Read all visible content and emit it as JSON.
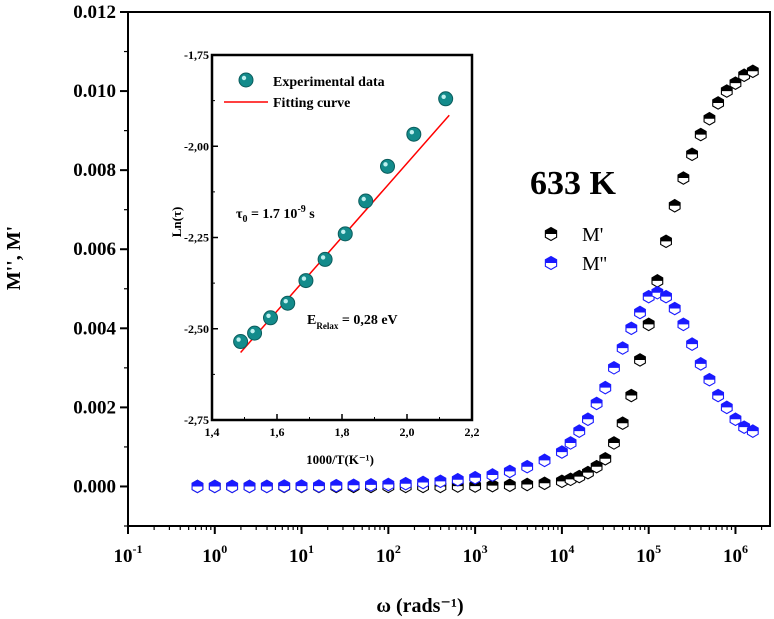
{
  "chart_data": [
    {
      "type": "scatter",
      "title": "",
      "xlabel": "ω (rads⁻¹)",
      "ylabel": "M'', M'",
      "xscale": "log",
      "xlim": [
        0.1,
        2500000
      ],
      "ylim": [
        -0.001,
        0.012
      ],
      "x_ticks": [
        {
          "base": "10",
          "exp": "-1",
          "value": 0.1
        },
        {
          "base": "10",
          "exp": "0",
          "value": 1
        },
        {
          "base": "10",
          "exp": "1",
          "value": 10
        },
        {
          "base": "10",
          "exp": "2",
          "value": 100
        },
        {
          "base": "10",
          "exp": "3",
          "value": 1000
        },
        {
          "base": "10",
          "exp": "4",
          "value": 10000
        },
        {
          "base": "10",
          "exp": "5",
          "value": 100000
        },
        {
          "base": "10",
          "exp": "6",
          "value": 1000000
        }
      ],
      "y_ticks": [
        {
          "label": "0.000",
          "value": 0.0
        },
        {
          "label": "0.002",
          "value": 0.002
        },
        {
          "label": "0.004",
          "value": 0.004
        },
        {
          "label": "0.006",
          "value": 0.006
        },
        {
          "label": "0.008",
          "value": 0.008
        },
        {
          "label": "0.010",
          "value": 0.01
        },
        {
          "label": "0.012",
          "value": 0.012
        }
      ],
      "annotation": "633 K",
      "legend_position": "middle-right",
      "series": [
        {
          "name": "M'",
          "color": "#000000",
          "x": [
            0.631,
            1.0,
            1.585,
            2.512,
            3.981,
            6.31,
            10,
            15.85,
            25.12,
            39.81,
            63.1,
            100,
            158.5,
            251.2,
            398.1,
            631,
            1000,
            1585,
            2512,
            3981,
            6310,
            10000,
            12590,
            15850,
            19950,
            25120,
            31620,
            39810,
            50120,
            63100,
            79430,
            100000,
            125900,
            158500,
            199500,
            251200,
            316200,
            398100,
            501200,
            631000,
            794300,
            1000000,
            1259000,
            1585000
          ],
          "y": [
            0.0,
            0.0,
            0.0,
            0.0,
            0.0,
            0.0,
            0.0,
            0.0,
            0.0,
            0.0,
            0.0,
            0.0,
            0.0,
            0.0,
            0.0,
            1e-05,
            1e-05,
            2e-05,
            3e-05,
            5e-05,
            8e-05,
            0.00013,
            0.00018,
            0.00025,
            0.00035,
            0.0005,
            0.0007,
            0.0011,
            0.0016,
            0.0023,
            0.0032,
            0.0041,
            0.0052,
            0.0062,
            0.0071,
            0.0078,
            0.0084,
            0.0089,
            0.0093,
            0.0097,
            0.01,
            0.0102,
            0.0104,
            0.0105
          ]
        },
        {
          "name": "M''",
          "color": "#1a1aff",
          "x": [
            0.631,
            1.0,
            1.585,
            2.512,
            3.981,
            6.31,
            10,
            15.85,
            25.12,
            39.81,
            63.1,
            100,
            158.5,
            251.2,
            398.1,
            631,
            1000,
            1585,
            2512,
            3981,
            6310,
            10000,
            12590,
            15850,
            19950,
            25120,
            31620,
            39810,
            50120,
            63100,
            79430,
            100000,
            125900,
            158500,
            199500,
            251200,
            316200,
            398100,
            501200,
            631000,
            794300,
            1000000,
            1259000,
            1585000
          ],
          "y": [
            0.0,
            0.0,
            0.0,
            0.0,
            0.0,
            1e-05,
            1e-05,
            1e-05,
            2e-05,
            3e-05,
            4e-05,
            5e-05,
            7e-05,
            0.0001,
            0.00013,
            0.00017,
            0.00022,
            0.00029,
            0.00038,
            0.0005,
            0.00066,
            0.00087,
            0.0011,
            0.0014,
            0.0017,
            0.0021,
            0.0025,
            0.003,
            0.0035,
            0.004,
            0.0044,
            0.0048,
            0.0049,
            0.0048,
            0.0045,
            0.0041,
            0.0036,
            0.0031,
            0.0027,
            0.0023,
            0.002,
            0.0017,
            0.0015,
            0.0014
          ]
        }
      ]
    },
    {
      "type": "scatter",
      "title": "",
      "xlabel": "1000/T(K⁻¹)",
      "ylabel": "Ln(τ)",
      "xlim": [
        1.4,
        2.2
      ],
      "ylim": [
        -2.75,
        -1.75
      ],
      "x_ticks": [
        "1,4",
        "1,6",
        "1,8",
        "2,0",
        "2,2"
      ],
      "y_ticks": [
        "-1,75",
        "-2,00",
        "-2,25",
        "-2,50",
        "-2,75"
      ],
      "legend_position": "top-left",
      "legend": [
        "Experimental data",
        "Fitting curve"
      ],
      "annotations": {
        "tau_prefix": "τ",
        "tau_sub": "0",
        "tau_value": " = 1.7 10",
        "tau_exp": "-9",
        "tau_unit": " s",
        "e_prefix": "E",
        "e_sub": "Relax",
        "e_value": " = 0,28 eV"
      },
      "series": [
        {
          "name": "Experimental data",
          "color": "#138b8b",
          "x": [
            1.488,
            1.531,
            1.58,
            1.633,
            1.689,
            1.748,
            1.81,
            1.873,
            1.94,
            2.021,
            2.119
          ],
          "y": [
            -2.535,
            -2.512,
            -2.47,
            -2.43,
            -2.368,
            -2.31,
            -2.24,
            -2.15,
            -2.055,
            -1.967,
            -1.87
          ]
        },
        {
          "name": "Fitting curve",
          "color": "#ff0000",
          "x": [
            1.488,
            2.13
          ],
          "y": [
            -2.565,
            -1.915
          ]
        }
      ]
    }
  ]
}
